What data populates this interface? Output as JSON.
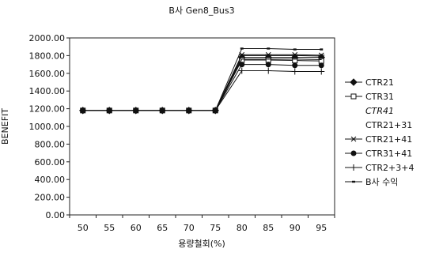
{
  "chart_data": {
    "type": "line",
    "title": "B사 Gen8_Bus3",
    "xlabel": "용량철회(%)",
    "ylabel": "BENEFIT",
    "x": [
      50,
      55,
      60,
      65,
      70,
      75,
      80,
      85,
      90,
      95
    ],
    "ylim": [
      0,
      2000
    ],
    "yticks": [
      "0.00",
      "200.00",
      "400.00",
      "600.00",
      "800.00",
      "1000.00",
      "1200.00",
      "1400.00",
      "1600.00",
      "1800.00",
      "2000.00"
    ],
    "grid": "horizontal at 2000 only",
    "legend_position": "right",
    "series": [
      {
        "name": "CTR21",
        "marker": "diamond-filled",
        "values": [
          1180,
          1180,
          1180,
          1180,
          1180,
          1180,
          1780,
          1780,
          1780,
          1780
        ]
      },
      {
        "name": "CTR31",
        "marker": "square-open",
        "values": [
          1180,
          1180,
          1180,
          1180,
          1180,
          1180,
          1750,
          1750,
          1745,
          1740
        ]
      },
      {
        "name": "CTR41",
        "marker": "none",
        "values": [
          1180,
          1180,
          1180,
          1180,
          1180,
          1180,
          1800,
          1800,
          1800,
          1795
        ]
      },
      {
        "name": "CTR21+31",
        "marker": "none",
        "values": [
          1180,
          1180,
          1180,
          1180,
          1180,
          1180,
          1760,
          1760,
          1760,
          1755
        ]
      },
      {
        "name": "CTR21+41",
        "marker": "star",
        "values": [
          1180,
          1180,
          1180,
          1180,
          1180,
          1180,
          1810,
          1810,
          1810,
          1805
        ]
      },
      {
        "name": "CTR31+41",
        "marker": "circle-filled",
        "values": [
          1180,
          1180,
          1180,
          1180,
          1180,
          1180,
          1700,
          1700,
          1690,
          1690
        ]
      },
      {
        "name": "CTR2+3+4",
        "marker": "plus",
        "values": [
          1180,
          1180,
          1180,
          1180,
          1180,
          1180,
          1630,
          1630,
          1620,
          1620
        ]
      },
      {
        "name": "B사 수익",
        "marker": "dash",
        "values": [
          1180,
          1180,
          1180,
          1180,
          1180,
          1180,
          1880,
          1880,
          1870,
          1870
        ]
      }
    ]
  }
}
